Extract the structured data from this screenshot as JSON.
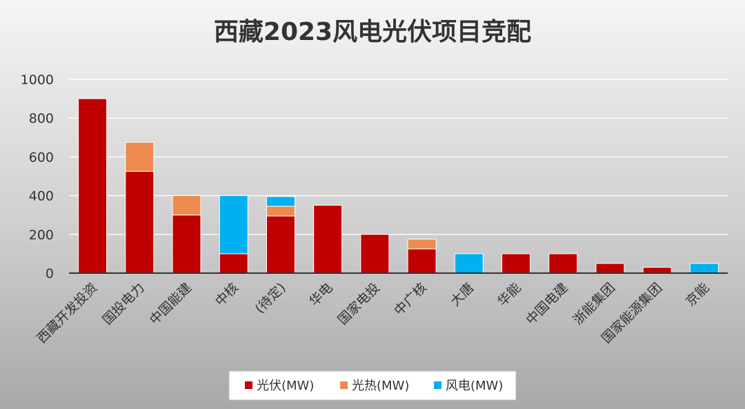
{
  "chart_data": {
    "type": "bar",
    "stacked": true,
    "title": "西藏2023风电光伏项目竞配",
    "xlabel": "",
    "ylabel": "",
    "ylim": [
      0,
      1000
    ],
    "yticks": [
      0,
      200,
      400,
      600,
      800,
      1000
    ],
    "grid": true,
    "legend_position": "bottom",
    "categories": [
      "西藏开发投资",
      "国投电力",
      "中国能建",
      "中核",
      "(待定)",
      "华电",
      "国家电投",
      "中广核",
      "大唐",
      "华能",
      "中国电建",
      "浙能集团",
      "国家能源集团",
      "京能"
    ],
    "series": [
      {
        "name": "光伏(MW)",
        "color": "#c00000",
        "values": [
          900,
          525,
          300,
          100,
          295,
          350,
          200,
          125,
          0,
          100,
          100,
          50,
          30,
          0
        ]
      },
      {
        "name": "光热(MW)",
        "color": "#ed8a4e",
        "values": [
          0,
          150,
          100,
          0,
          50,
          0,
          0,
          50,
          0,
          0,
          0,
          0,
          0,
          0
        ]
      },
      {
        "name": "风电(MW)",
        "color": "#00b0f0",
        "values": [
          0,
          0,
          0,
          300,
          50,
          0,
          0,
          0,
          100,
          0,
          0,
          0,
          0,
          50
        ]
      }
    ]
  }
}
